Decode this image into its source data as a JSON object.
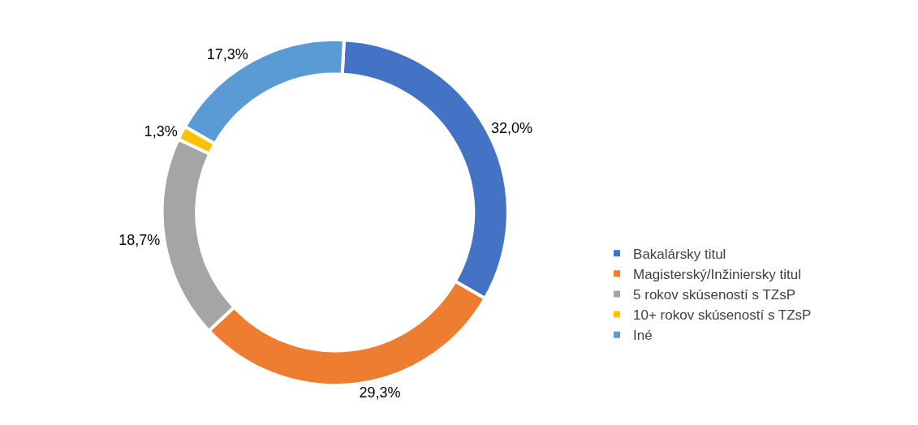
{
  "chart_data": {
    "type": "donut",
    "categories": [
      "Bakalársky titul",
      "Magisterský/Inžiniersky titul",
      "5 rokov skúseností s TZsP",
      "10+ rokov skúseností s TZsP",
      "Iné"
    ],
    "values": [
      32.0,
      29.3,
      18.7,
      1.3,
      17.3
    ],
    "value_labels": [
      "32,0%",
      "29,3%",
      "18,7%",
      "1,3%",
      "17,3%"
    ],
    "colors": [
      "#4472c4",
      "#ed7d31",
      "#a5a5a5",
      "#ffc000",
      "#5b9bd5"
    ],
    "legend": "right"
  }
}
